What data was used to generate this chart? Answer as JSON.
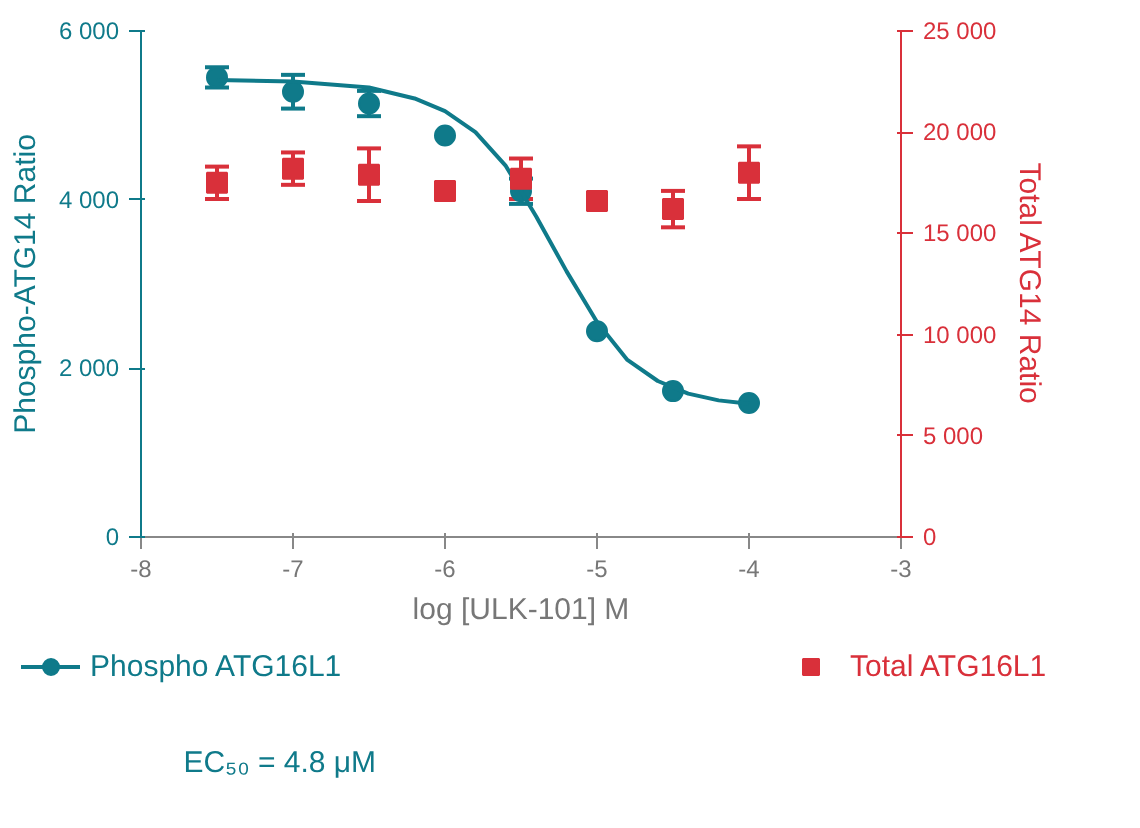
{
  "chart_data": {
    "type": "scatter",
    "xlabel": "log [ULK-101] M",
    "ylabel": "Phospho-ATG14 Ratio",
    "y2label": "Total ATG14 Ratio",
    "xlim": [
      -8,
      -3
    ],
    "xticks": [
      -8,
      -7,
      -6,
      -5,
      -4,
      -3
    ],
    "ylim": [
      0,
      6000
    ],
    "yticks": [
      0,
      {
        "value": 2000,
        "label": "2 000"
      },
      {
        "value": 4000,
        "label": "4 000"
      },
      {
        "value": 6000,
        "label": "6 000"
      }
    ],
    "y2lim": [
      0,
      25000
    ],
    "y2ticks": [
      0,
      {
        "value": 5000,
        "label": "5 000"
      },
      {
        "value": 10000,
        "label": "10 000"
      },
      {
        "value": 15000,
        "label": "15 000"
      },
      {
        "value": 20000,
        "label": "20 000"
      },
      {
        "value": 25000,
        "label": "25 000"
      }
    ],
    "x": [
      -7.5,
      -7,
      -6.5,
      -6,
      -5.5,
      -5,
      -4.5,
      -4
    ],
    "series": [
      {
        "name": "Phospho ATG16L1",
        "color": "#0f7a8a",
        "marker": "circle",
        "values": [
          5450,
          5280,
          5140,
          4760,
          4100,
          2440,
          1730,
          1590
        ],
        "errors": [
          120,
          200,
          150,
          null,
          150,
          null,
          null,
          null
        ]
      },
      {
        "type": "line",
        "color": "#0f7a8a",
        "x": [
          -7.5,
          -7,
          -6.5,
          -6.2,
          -6,
          -5.8,
          -5.6,
          -5.4,
          -5.2,
          -5,
          -4.8,
          -4.6,
          -4.4,
          -4.2,
          -4
        ],
        "values": [
          5420,
          5400,
          5330,
          5200,
          5050,
          4800,
          4400,
          3800,
          3150,
          2550,
          2100,
          1850,
          1700,
          1620,
          1580
        ]
      },
      {
        "name": "Total ATG16L1",
        "color": "#d9303a",
        "marker": "square",
        "axis": "y2",
        "values": [
          17500,
          18200,
          17900,
          17100,
          17700,
          16600,
          16200,
          18000
        ],
        "errors": [
          800,
          800,
          1300,
          null,
          1000,
          null,
          900,
          1300
        ]
      }
    ],
    "legend": "bottom",
    "grid": false,
    "annotations": [
      "EC₅₀ = 4.8 μM"
    ]
  }
}
